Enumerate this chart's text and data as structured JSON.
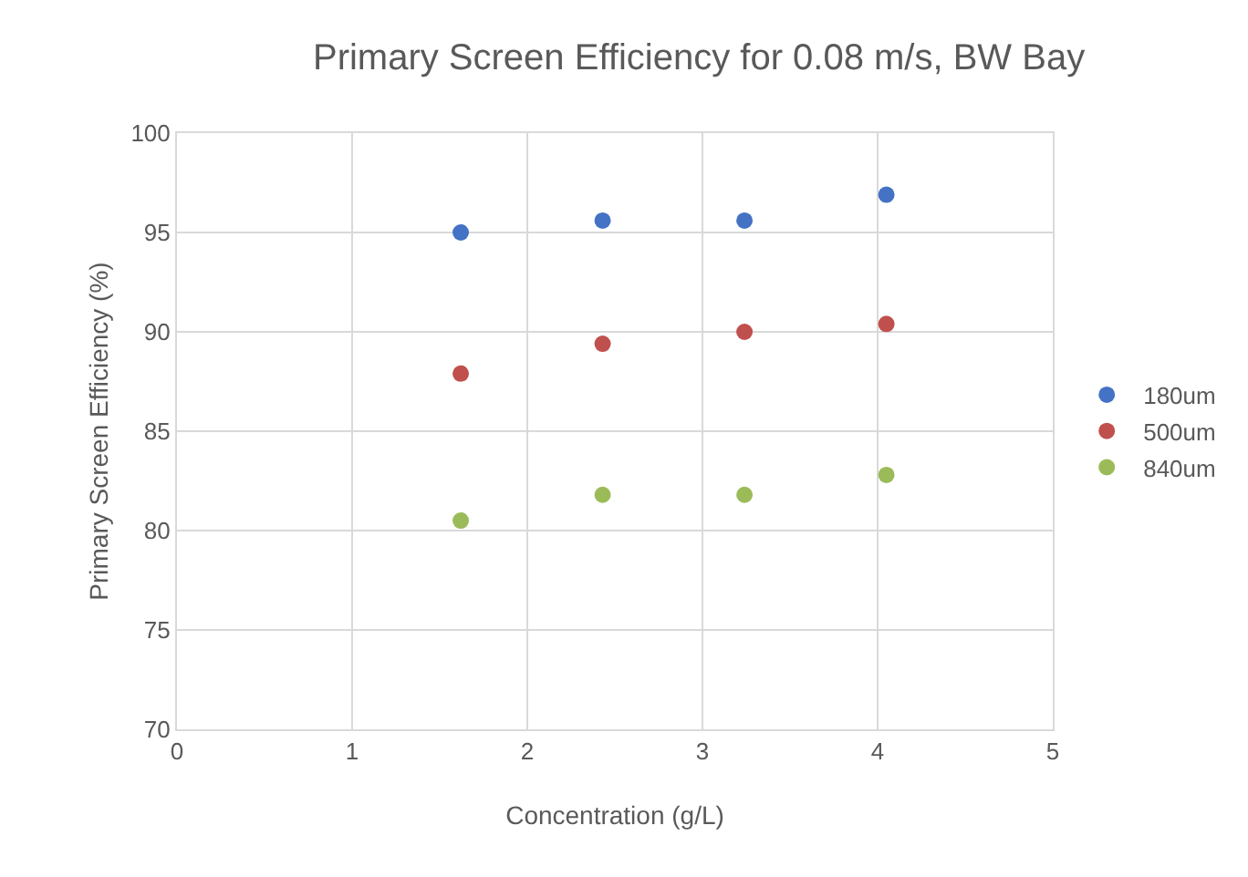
{
  "chart_data": {
    "type": "scatter",
    "title": "Primary Screen Efficiency for 0.08 m/s, BW Bay",
    "xlabel": "Concentration (g/L)",
    "ylabel": "Primary Screen Efficiency (%)",
    "x": [
      1.62,
      2.43,
      3.24,
      4.05
    ],
    "series": [
      {
        "name": "180um",
        "color": "#4472c4",
        "values": [
          95.0,
          95.6,
          95.6,
          96.9
        ]
      },
      {
        "name": "500um",
        "color": "#c0504d",
        "values": [
          87.9,
          89.4,
          90.0,
          90.4
        ]
      },
      {
        "name": "840um",
        "color": "#9bbb59",
        "values": [
          80.5,
          81.8,
          81.8,
          82.8
        ]
      }
    ],
    "xlim": [
      0,
      5
    ],
    "xticks": [
      0,
      1,
      2,
      3,
      4,
      5
    ],
    "ylim": [
      70,
      100
    ],
    "yticks": [
      70,
      75,
      80,
      85,
      90,
      95,
      100
    ],
    "grid": true,
    "legend": "right",
    "marker": "circle"
  }
}
